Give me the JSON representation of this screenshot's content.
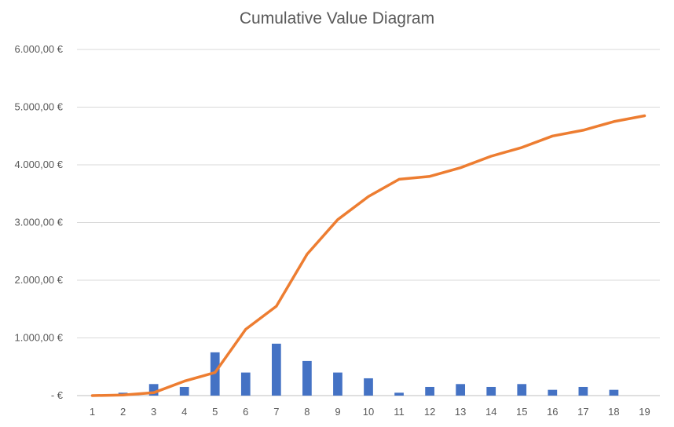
{
  "chart_data": {
    "type": "bar",
    "title": "Cumulative Value Diagram",
    "xlabel": "",
    "ylabel": "",
    "categories": [
      "1",
      "2",
      "3",
      "4",
      "5",
      "6",
      "7",
      "8",
      "9",
      "10",
      "11",
      "12",
      "13",
      "14",
      "15",
      "16",
      "17",
      "18",
      "19"
    ],
    "ylim": [
      0,
      6000
    ],
    "yticks": [
      0,
      1000,
      2000,
      3000,
      4000,
      5000,
      6000
    ],
    "ytick_labels": [
      "-  €",
      "1.000,00 €",
      "2.000,00 €",
      "3.000,00 €",
      "4.000,00 €",
      "5.000,00 €",
      "6.000,00 €"
    ],
    "grid": true,
    "legend": "none",
    "series": [
      {
        "type": "bar",
        "color": "#4472C4",
        "values": [
          0,
          50,
          200,
          150,
          750,
          400,
          900,
          600,
          400,
          300,
          50,
          150,
          200,
          150,
          200,
          100,
          150,
          100,
          0
        ]
      },
      {
        "type": "line",
        "color": "#ED7D31",
        "values": [
          0,
          10,
          50,
          250,
          400,
          1150,
          1550,
          2450,
          3050,
          3450,
          3750,
          3800,
          3950,
          4150,
          4300,
          4500,
          4600,
          4750,
          4850
        ]
      }
    ]
  }
}
